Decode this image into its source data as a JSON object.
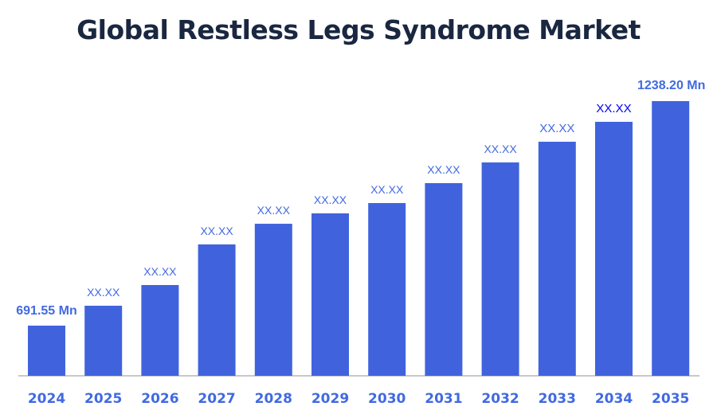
{
  "chart_data": {
    "type": "bar",
    "title": "Global Restless Legs Syndrome Market",
    "xlabel": "",
    "ylabel": "",
    "categories": [
      "2024",
      "2025",
      "2026",
      "2027",
      "2028",
      "2029",
      "2030",
      "2031",
      "2032",
      "2033",
      "2034",
      "2035"
    ],
    "values": [
      691.55,
      740.0,
      790.4,
      889.3,
      939.6,
      964.9,
      990.0,
      1038.5,
      1088.9,
      1139.3,
      1187.8,
      1238.2
    ],
    "data_labels": [
      "691.55 Mn",
      "XX.XX",
      "XX.XX",
      "XX.XX",
      "XX.XX",
      "XX.XX",
      "XX.XX",
      "XX.XX",
      "XX.XX",
      "XX.XX",
      "XX.XX",
      "1238.20 Mn"
    ],
    "unit": "Mn",
    "ylim": [
      569.4,
      1238.2
    ],
    "grid": false,
    "legend": "none",
    "colors": {
      "bar": "#4063DD",
      "label": "#4169E1",
      "highlight_label": "#0000EE",
      "title": "#1A2740",
      "axis": "#C8C8C8"
    }
  }
}
